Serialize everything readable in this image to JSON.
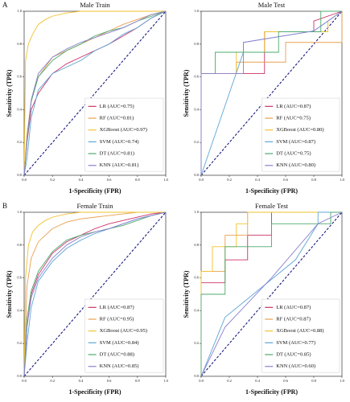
{
  "panel_labels": [
    "A",
    "B"
  ],
  "chart_data": [
    {
      "type": "line",
      "title": "Male Train",
      "xlabel": "1-Specificity (FPR)",
      "ylabel": "Sensitivity (TPR)",
      "xlim": [
        0,
        1
      ],
      "ylim": [
        0,
        1
      ],
      "xticks": [
        {
          "value": 0,
          "label": "0.0"
        },
        0.2,
        0.4,
        0.6,
        0.8,
        {
          "value": 1,
          "label": "1.0"
        }
      ],
      "yticks": [
        {
          "value": 0,
          "label": "0.0"
        },
        0.2,
        0.4,
        0.6,
        0.8,
        {
          "value": 1,
          "label": "1.0"
        }
      ],
      "series": [
        {
          "name": "LR (AUC=0.75)",
          "color": "#cc3366",
          "x": [
            0,
            0.02,
            0.05,
            0.1,
            0.2,
            0.3,
            0.4,
            0.5,
            0.6,
            0.7,
            0.8,
            0.9,
            1
          ],
          "values": [
            0,
            0.2,
            0.4,
            0.5,
            0.62,
            0.68,
            0.72,
            0.76,
            0.8,
            0.85,
            0.9,
            0.96,
            1
          ]
        },
        {
          "name": "RF (AUC=0.81)",
          "color": "#e8a050",
          "x": [
            0,
            0.02,
            0.05,
            0.1,
            0.2,
            0.3,
            0.4,
            0.5,
            0.6,
            0.7,
            0.8,
            0.9,
            1
          ],
          "values": [
            0,
            0.25,
            0.45,
            0.6,
            0.72,
            0.76,
            0.8,
            0.84,
            0.88,
            0.92,
            0.95,
            0.98,
            1
          ]
        },
        {
          "name": "XGBoost (AUC=0.97)",
          "color": "#f2c12e",
          "x": [
            0,
            0.01,
            0.03,
            0.06,
            0.1,
            0.15,
            0.2,
            0.3,
            0.4,
            1
          ],
          "values": [
            0,
            0.7,
            0.8,
            0.86,
            0.92,
            0.95,
            0.97,
            0.99,
            1,
            1
          ]
        },
        {
          "name": "SVM (AUC=0.74)",
          "color": "#5fa6d6",
          "x": [
            0,
            0.02,
            0.05,
            0.1,
            0.2,
            0.3,
            0.4,
            0.5,
            0.6,
            0.7,
            0.8,
            0.9,
            1
          ],
          "values": [
            0,
            0.1,
            0.35,
            0.52,
            0.62,
            0.66,
            0.7,
            0.76,
            0.8,
            0.86,
            0.9,
            0.96,
            1
          ]
        },
        {
          "name": "DT (AUC=0.81)",
          "color": "#4dab6d",
          "x": [
            0,
            0.02,
            0.05,
            0.1,
            0.2,
            0.3,
            0.4,
            0.5,
            0.6,
            0.7,
            0.8,
            0.9,
            1
          ],
          "values": [
            0,
            0.2,
            0.45,
            0.6,
            0.7,
            0.76,
            0.8,
            0.85,
            0.88,
            0.9,
            0.94,
            0.97,
            1
          ]
        },
        {
          "name": "KNN (AUC=0.81)",
          "color": "#8a7fd0",
          "x": [
            0,
            0.02,
            0.05,
            0.1,
            0.2,
            0.3,
            0.4,
            0.5,
            0.6,
            0.7,
            0.8,
            0.9,
            1
          ],
          "values": [
            0,
            0.22,
            0.46,
            0.62,
            0.72,
            0.77,
            0.81,
            0.84,
            0.87,
            0.9,
            0.94,
            0.98,
            1
          ]
        }
      ]
    },
    {
      "type": "line",
      "title": "Male Test",
      "xlabel": "1-Specificity (FPR)",
      "ylabel": "Sensitivity (TPR)",
      "xlim": [
        0,
        1
      ],
      "ylim": [
        0,
        1
      ],
      "xticks": [
        {
          "value": 0,
          "label": "0.0"
        },
        0.2,
        0.4,
        0.6,
        0.8,
        {
          "value": 1,
          "label": "1.0"
        }
      ],
      "yticks": [
        {
          "value": 0,
          "label": "0.0"
        },
        0.2,
        0.4,
        0.6,
        0.8,
        {
          "value": 1,
          "label": "1.0"
        }
      ],
      "series": [
        {
          "name": "LR (AUC=0.87)",
          "color": "#cc3366",
          "x": [
            0,
            0,
            0.45,
            0.45,
            0.8,
            0.8,
            1
          ],
          "values": [
            0,
            0.62,
            0.62,
            0.875,
            0.875,
            0.94,
            1
          ]
        },
        {
          "name": "RF (AUC=0.75)",
          "color": "#e8a050",
          "x": [
            0,
            0,
            0.25,
            0.25,
            0.6,
            0.6,
            1,
            1
          ],
          "values": [
            0,
            0.62,
            0.62,
            0.69,
            0.69,
            0.81,
            0.81,
            1
          ]
        },
        {
          "name": "XGBoost (AUC=0.80)",
          "color": "#f2c12e",
          "x": [
            0,
            0,
            0.25,
            0.25,
            0.45,
            0.45,
            0.9,
            0.9,
            1
          ],
          "values": [
            0,
            0.62,
            0.62,
            0.75,
            0.75,
            0.875,
            0.875,
            0.94,
            1
          ]
        },
        {
          "name": "SVM (AUC=0.87)",
          "color": "#5fa6d6",
          "x": [
            0,
            0.3,
            0.3,
            0.8,
            1
          ],
          "values": [
            0,
            0.75,
            0.81,
            0.88,
            1
          ]
        },
        {
          "name": "DT (AUC=0.75)",
          "color": "#4dab6d",
          "x": [
            0,
            0,
            0.1,
            0.1,
            0.55,
            0.55,
            0.85,
            0.85,
            1
          ],
          "values": [
            0,
            0.62,
            0.62,
            0.75,
            0.75,
            0.875,
            0.875,
            1,
            1
          ]
        },
        {
          "name": "KNN (AUC=0.80)",
          "color": "#8a7fd0",
          "x": [
            0,
            0,
            0.3,
            0.3,
            0.8,
            1
          ],
          "values": [
            0,
            0.62,
            0.62,
            0.81,
            0.88,
            1
          ]
        }
      ]
    },
    {
      "type": "line",
      "title": "Female Train",
      "xlabel": "1-Specificity (FPR)",
      "ylabel": "Sensitivity (TPR)",
      "xlim": [
        0,
        1
      ],
      "ylim": [
        0,
        1
      ],
      "xticks": [
        {
          "value": 0,
          "label": "0.0"
        },
        0.2,
        0.4,
        0.6,
        0.8,
        {
          "value": 1,
          "label": "1.0"
        }
      ],
      "yticks": [
        {
          "value": 0,
          "label": "0.0"
        },
        0.2,
        0.4,
        0.6,
        0.8,
        {
          "value": 1,
          "label": "1.0"
        }
      ],
      "series": [
        {
          "name": "LR (AUC=0.87)",
          "color": "#cc3366",
          "x": [
            0,
            0.02,
            0.05,
            0.1,
            0.2,
            0.3,
            0.4,
            0.5,
            0.6,
            0.7,
            0.8,
            0.9,
            1
          ],
          "values": [
            0,
            0.3,
            0.5,
            0.62,
            0.75,
            0.82,
            0.86,
            0.9,
            0.93,
            0.95,
            0.97,
            0.99,
            1
          ]
        },
        {
          "name": "RF (AUC=0.95)",
          "color": "#e8a050",
          "x": [
            0,
            0.02,
            0.05,
            0.1,
            0.2,
            0.3,
            0.4,
            0.5,
            0.6,
            0.7,
            0.8,
            0.9,
            1
          ],
          "values": [
            0,
            0.55,
            0.72,
            0.82,
            0.9,
            0.94,
            0.96,
            0.97,
            0.98,
            0.99,
            1,
            1,
            1
          ]
        },
        {
          "name": "XGBoost (AUC=0.95)",
          "color": "#f2c12e",
          "x": [
            0,
            0.01,
            0.03,
            0.06,
            0.1,
            0.15,
            0.2,
            0.3,
            0.4,
            1
          ],
          "values": [
            0,
            0.6,
            0.8,
            0.88,
            0.92,
            0.95,
            0.97,
            0.99,
            1,
            1
          ]
        },
        {
          "name": "SVM (AUC=0.84)",
          "color": "#5fa6d6",
          "x": [
            0,
            0.02,
            0.05,
            0.1,
            0.2,
            0.3,
            0.4,
            0.5,
            0.6,
            0.7,
            0.8,
            0.9,
            1
          ],
          "values": [
            0,
            0.2,
            0.42,
            0.58,
            0.7,
            0.78,
            0.83,
            0.87,
            0.9,
            0.93,
            0.96,
            0.98,
            1
          ]
        },
        {
          "name": "DT (AUC=0.88)",
          "color": "#4dab6d",
          "x": [
            0,
            0.02,
            0.05,
            0.1,
            0.2,
            0.3,
            0.4,
            0.5,
            0.6,
            0.7,
            0.8,
            0.9,
            1
          ],
          "values": [
            0,
            0.35,
            0.52,
            0.64,
            0.76,
            0.83,
            0.86,
            0.88,
            0.9,
            0.92,
            0.95,
            0.98,
            1
          ]
        },
        {
          "name": "KNN (AUC=0.85)",
          "color": "#8a7fd0",
          "x": [
            0,
            0.02,
            0.05,
            0.1,
            0.2,
            0.3,
            0.4,
            0.5,
            0.6,
            0.7,
            0.8,
            0.9,
            1
          ],
          "values": [
            0,
            0.3,
            0.48,
            0.6,
            0.72,
            0.8,
            0.85,
            0.88,
            0.9,
            0.93,
            0.96,
            0.98,
            1
          ]
        }
      ]
    },
    {
      "type": "line",
      "title": "Female Test",
      "xlabel": "1-Specificity (FPR)",
      "ylabel": "Sensitivity (TPR)",
      "xlim": [
        0,
        1
      ],
      "ylim": [
        0,
        1
      ],
      "xticks": [
        {
          "value": 0,
          "label": "0.0"
        },
        0.2,
        0.4,
        0.6,
        0.8,
        {
          "value": 1,
          "label": "1.0"
        }
      ],
      "yticks": [
        {
          "value": 0,
          "label": "0.0"
        },
        0.2,
        0.4,
        0.6,
        0.8,
        {
          "value": 1,
          "label": "1.0"
        }
      ],
      "series": [
        {
          "name": "LR (AUC=0.87)",
          "color": "#cc3366",
          "x": [
            0,
            0,
            0.17,
            0.17,
            0.33,
            0.33,
            0.5,
            0.5,
            1
          ],
          "values": [
            0,
            0.57,
            0.57,
            0.71,
            0.71,
            0.86,
            0.86,
            1,
            1
          ]
        },
        {
          "name": "RF (AUC=0.87)",
          "color": "#e8a050",
          "x": [
            0,
            0,
            0.17,
            0.17,
            0.33,
            0.33,
            1
          ],
          "values": [
            0,
            0.64,
            0.64,
            0.86,
            0.86,
            1,
            1
          ]
        },
        {
          "name": "XGBoost (AUC=0.88)",
          "color": "#f2c12e",
          "x": [
            0,
            0,
            0.08,
            0.08,
            0.25,
            0.25,
            0.33,
            0.33,
            1
          ],
          "values": [
            0,
            0.64,
            0.64,
            0.79,
            0.79,
            0.93,
            0.93,
            1,
            1
          ]
        },
        {
          "name": "SVM (AUC=0.77)",
          "color": "#5fa6d6",
          "x": [
            0,
            0.17,
            0.67,
            0.83,
            0.83,
            1
          ],
          "values": [
            0,
            0.36,
            0.71,
            0.93,
            1,
            1
          ]
        },
        {
          "name": "DT (AUC=0.85)",
          "color": "#4dab6d",
          "x": [
            0,
            0,
            0.17,
            0.17,
            0.5,
            0.5,
            0.92,
            0.92,
            1
          ],
          "values": [
            0,
            0.5,
            0.5,
            0.79,
            0.79,
            0.93,
            0.93,
            1,
            1
          ]
        },
        {
          "name": "KNN (AUC=0.60)",
          "color": "#8a7fd0",
          "x": [
            0,
            0.17,
            0.5,
            0.83,
            1
          ],
          "values": [
            0,
            0.3,
            0.6,
            0.93,
            1
          ]
        }
      ]
    }
  ]
}
